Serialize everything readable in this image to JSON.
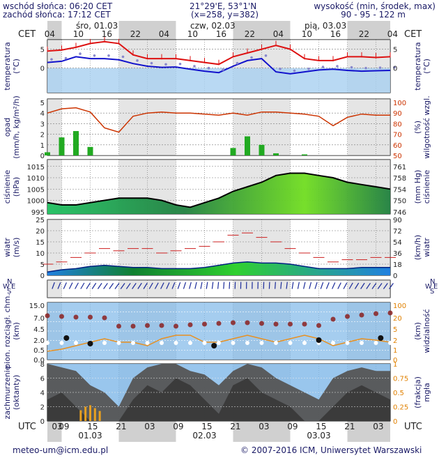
{
  "header": {
    "sunrise": "wschód słońca: 06:20 CET",
    "sunset": "zachód słońca: 17:12 CET",
    "coords": "21°29'E, 53°1'N",
    "grid": "(x=258, y=382)",
    "elev_title": "wysokość (min, środek, max)",
    "elev_values": "90 - 95 - 122 m"
  },
  "top_axis": {
    "tz": "CET",
    "days": [
      "śro, 01.03",
      "czw, 02.03",
      "pią, 03.03"
    ],
    "hours": [
      "04",
      "10",
      "16",
      "22",
      "04",
      "10",
      "16",
      "22",
      "04",
      "10",
      "16",
      "22",
      "04"
    ]
  },
  "bottom_axis": {
    "tz": "UTC",
    "hours": [
      "03",
      "09",
      "15",
      "21",
      "03",
      "09",
      "15",
      "21",
      "03",
      "09",
      "15",
      "21",
      "03"
    ],
    "dates": [
      "01.03",
      "02.03",
      "03.03"
    ]
  },
  "footer": {
    "email": "meteo-um@icm.edu.pl",
    "copyright": "© 2007-2016 ICM, Uniwersytet Warszawski"
  },
  "panels": [
    {
      "key": "temp",
      "left": [
        "temperatura",
        "(°C)"
      ],
      "right": [
        "temperatura",
        "(°C)"
      ],
      "ticks_left": [
        "5",
        "0"
      ],
      "ticks_right": [
        "5",
        "0"
      ]
    },
    {
      "key": "prec",
      "left": [
        "opad",
        "(mm/h, kg/m²/h)"
      ],
      "right": [
        "(%)",
        "wilgotność wzgl."
      ],
      "ticks_left": [
        "5",
        "4",
        "3",
        "2",
        "1",
        "0"
      ],
      "ticks_right": [
        "100",
        "90",
        "80",
        "70",
        "60",
        "50"
      ]
    },
    {
      "key": "press",
      "left": [
        "ciśnienie",
        "(hPa)"
      ],
      "right": [
        "(mm Hg)",
        "ciśnienie"
      ],
      "ticks_left": [
        "1015",
        "1010",
        "1005",
        "1000",
        "995"
      ],
      "ticks_right": [
        "761",
        "758",
        "754",
        "750",
        "746"
      ]
    },
    {
      "key": "wind",
      "left": [
        "wiatr",
        "(m/s)"
      ],
      "right": [
        "(km/h)",
        "wiatr"
      ],
      "ticks_left": [
        "25",
        "20",
        "15",
        "10",
        "5",
        "0"
      ],
      "ticks_right": [
        "90",
        "72",
        "54",
        "36",
        "18",
        "0"
      ]
    },
    {
      "key": "cloud",
      "left": [
        "pion. rozciągł. chm.",
        "(km)"
      ],
      "right": [
        "(km)",
        "widzialność"
      ],
      "ticks_left": [
        "15.0",
        "7.0",
        "4.5",
        "2.0",
        "0.5",
        "0.0"
      ],
      "ticks_right": [
        "100",
        "20",
        "5",
        "2",
        "1",
        "0"
      ]
    },
    {
      "key": "cover",
      "left": [
        "zachmurzenie",
        "(oktanty)"
      ],
      "right": [
        "(frakcja)",
        "mgła"
      ],
      "ticks_left": [
        "8",
        "6",
        "4",
        "2",
        "0"
      ],
      "ticks_right": [
        "1",
        "0.75",
        "0.5",
        "0.25",
        "0"
      ]
    }
  ],
  "wind_dir_labels": {
    "n": "N",
    "w": "W",
    "e": "E",
    "s": "S"
  },
  "colors": {
    "temp_line": "#dd1111",
    "dew_line": "#1111cc",
    "press_line": "#000000",
    "rh_line": "#cc3300",
    "precip": "#22aa22",
    "cloud_bg": "#7fb8e8",
    "sky_blue": "#a8d0f0",
    "snow": "#e8a020"
  },
  "chart_data": {
    "type": "line",
    "x_hours_from_start": [
      0,
      3,
      6,
      9,
      12,
      15,
      18,
      21,
      24,
      27,
      30,
      33,
      36,
      39,
      42,
      45,
      48,
      51,
      54,
      57,
      60,
      63,
      66,
      69,
      72
    ],
    "temperature": [
      4.5,
      4.8,
      5.5,
      6.5,
      7,
      6.5,
      3.5,
      2.5,
      2.5,
      2.5,
      2.0,
      1.5,
      1.0,
      3,
      4,
      5,
      6,
      5,
      2.5,
      2.0,
      2.0,
      3.0,
      3.0,
      2.8,
      3.0
    ],
    "dew_point": [
      1.5,
      1.8,
      3,
      2.5,
      2.5,
      2.2,
      1.2,
      0.5,
      0.2,
      0.3,
      -0.3,
      -0.8,
      -1.2,
      0.5,
      2,
      2.5,
      -1.0,
      -1.5,
      -1.0,
      -0.5,
      -0.3,
      -0.6,
      -0.8,
      -0.7,
      -0.6
    ],
    "relative_humidity": [
      90,
      94,
      95,
      91,
      76,
      72,
      87,
      90,
      91,
      90,
      90,
      89,
      88,
      90,
      88,
      91,
      91,
      90,
      89,
      87,
      78,
      86,
      89,
      88,
      88
    ],
    "precipitation": [
      0.3,
      1.7,
      2.3,
      0.8,
      0,
      0,
      0,
      0,
      0,
      0,
      0,
      0,
      0,
      0.7,
      1.8,
      1.0,
      0.2,
      0,
      0.1,
      0,
      0,
      0,
      0,
      0,
      0
    ],
    "pressure": [
      999,
      998,
      998,
      999,
      1000,
      1001,
      1001,
      1001,
      1000,
      998,
      997,
      999,
      1001,
      1004,
      1006,
      1008,
      1011,
      1012,
      1012,
      1011,
      1010,
      1008,
      1007,
      1006,
      1005
    ],
    "wind_speed": [
      1.5,
      2.5,
      3,
      4,
      4.5,
      4,
      3.5,
      3.5,
      3,
      3,
      3,
      3.5,
      4.5,
      5.5,
      6,
      5.5,
      5.5,
      5,
      4,
      3,
      3,
      3,
      3.5,
      3.5,
      3.5
    ],
    "wind_gust": [
      5,
      6,
      8,
      10,
      12,
      11,
      12,
      12,
      10,
      11,
      12,
      13,
      15,
      18,
      19,
      17,
      15,
      12,
      10,
      8,
      6,
      7,
      7,
      8,
      8
    ],
    "visibility": [
      1.2,
      1.5,
      2.0,
      2.5,
      3.0,
      2.5,
      2.5,
      2.0,
      3.0,
      3.5,
      3.5,
      2.5,
      2.5,
      3.0,
      3.5,
      3.0,
      2.5,
      3.0,
      3.5,
      3.0,
      2.0,
      2.5,
      3.0,
      2.8,
      2.5
    ],
    "cloud_top": [
      10.5,
      10,
      9.5,
      9.5,
      9,
      3.0,
      3.0,
      3.5,
      3.5,
      3.0,
      4.0,
      4.5,
      5.0,
      5.5,
      5.5,
      5.0,
      4.5,
      4.5,
      4.5,
      3.5,
      8,
      10,
      11,
      12,
      12.5
    ]
  }
}
